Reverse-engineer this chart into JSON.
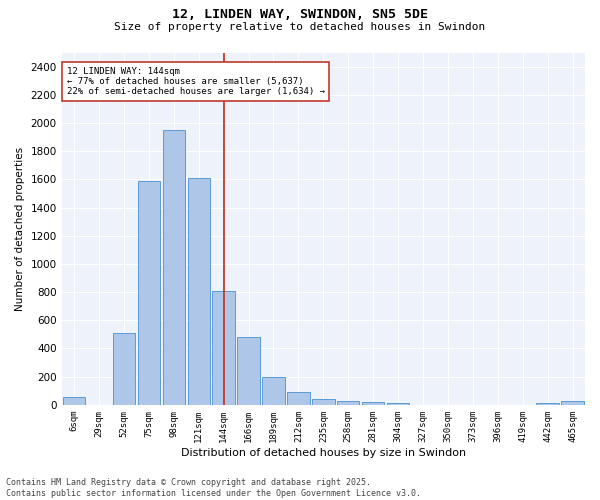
{
  "title1": "12, LINDEN WAY, SWINDON, SN5 5DE",
  "title2": "Size of property relative to detached houses in Swindon",
  "xlabel": "Distribution of detached houses by size in Swindon",
  "ylabel": "Number of detached properties",
  "bar_color": "#aec6e8",
  "bar_edge_color": "#5b9bd5",
  "background_color": "#eef2fa",
  "grid_color": "#ffffff",
  "categories": [
    "6sqm",
    "29sqm",
    "52sqm",
    "75sqm",
    "98sqm",
    "121sqm",
    "144sqm",
    "166sqm",
    "189sqm",
    "212sqm",
    "235sqm",
    "258sqm",
    "281sqm",
    "304sqm",
    "327sqm",
    "350sqm",
    "373sqm",
    "396sqm",
    "419sqm",
    "442sqm",
    "465sqm"
  ],
  "values": [
    55,
    0,
    510,
    1590,
    1950,
    1610,
    810,
    480,
    195,
    90,
    40,
    30,
    20,
    10,
    0,
    0,
    0,
    0,
    0,
    10,
    25
  ],
  "vline_x": 6,
  "vline_color": "#c0392b",
  "annotation_text": "12 LINDEN WAY: 144sqm\n← 77% of detached houses are smaller (5,637)\n22% of semi-detached houses are larger (1,634) →",
  "annotation_box_color": "#c0392b",
  "ylim": [
    0,
    2500
  ],
  "yticks": [
    0,
    200,
    400,
    600,
    800,
    1000,
    1200,
    1400,
    1600,
    1800,
    2000,
    2200,
    2400
  ],
  "footer1": "Contains HM Land Registry data © Crown copyright and database right 2025.",
  "footer2": "Contains public sector information licensed under the Open Government Licence v3.0."
}
